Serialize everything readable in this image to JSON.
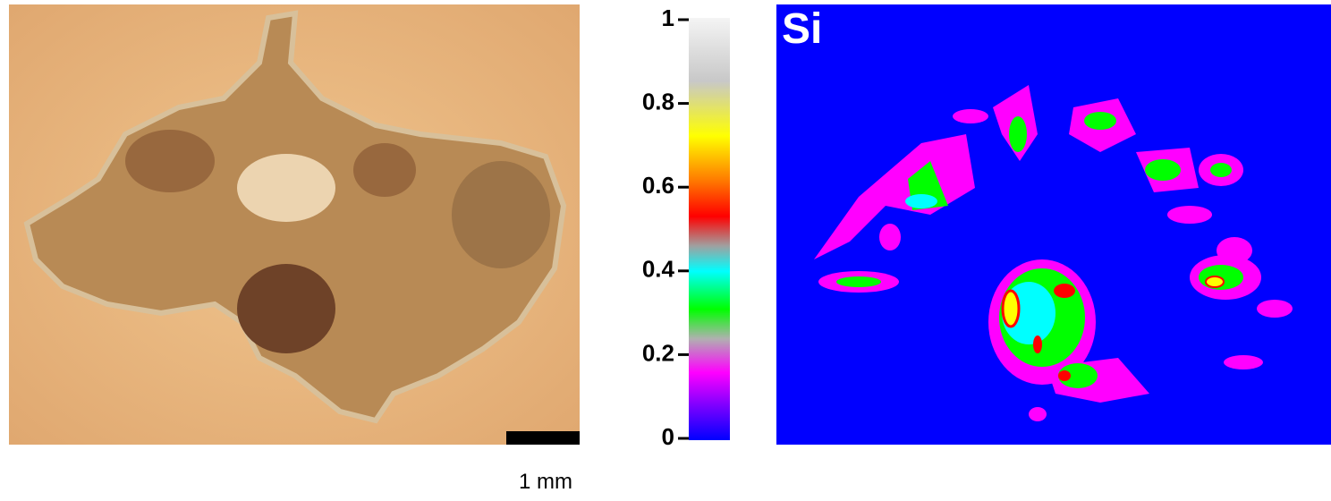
{
  "scale_bar_label": "1 mm",
  "colorbar": {
    "range": [
      0,
      1
    ],
    "ticks": [
      0,
      0.2,
      0.4,
      0.6,
      0.8,
      1
    ]
  },
  "map_label": "Si"
}
